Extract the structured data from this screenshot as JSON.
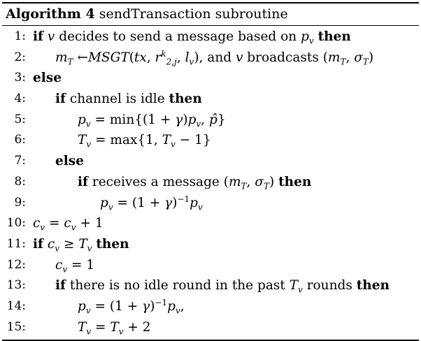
{
  "algorithm": {
    "label": "Algorithm 4",
    "name": "sendTransaction subroutine"
  },
  "lines": [
    {
      "no": "1:",
      "text": "if v decides to send a message based on pᵥ then"
    },
    {
      "no": "2:",
      "text": "m_T ←MSGT(tx, r^k_{2,j}, lᵥ), and v broadcasts (m_T, σ_T)"
    },
    {
      "no": "3:",
      "text": "else"
    },
    {
      "no": "4:",
      "text": "if channel is idle then"
    },
    {
      "no": "5:",
      "text": "pᵥ = min{(1 + γ)pᵥ, p̂}"
    },
    {
      "no": "6:",
      "text": "Tᵥ = max{1, Tᵥ − 1}"
    },
    {
      "no": "7:",
      "text": "else"
    },
    {
      "no": "8:",
      "text": "if receives a message (m_T, σ_T) then"
    },
    {
      "no": "9:",
      "text": "pᵥ = (1 + γ)⁻¹pᵥ"
    },
    {
      "no": "10:",
      "text": "cᵥ = cᵥ + 1"
    },
    {
      "no": "11:",
      "text": "if cᵥ ≥ Tᵥ then"
    },
    {
      "no": "12:",
      "text": "cᵥ = 1"
    },
    {
      "no": "13:",
      "text": "if there is no idle round in the past Tᵥ rounds then"
    },
    {
      "no": "14:",
      "text": "pᵥ = (1 + γ)⁻¹pᵥ,"
    },
    {
      "no": "15:",
      "text": "Tᵥ = Tᵥ + 2"
    }
  ]
}
